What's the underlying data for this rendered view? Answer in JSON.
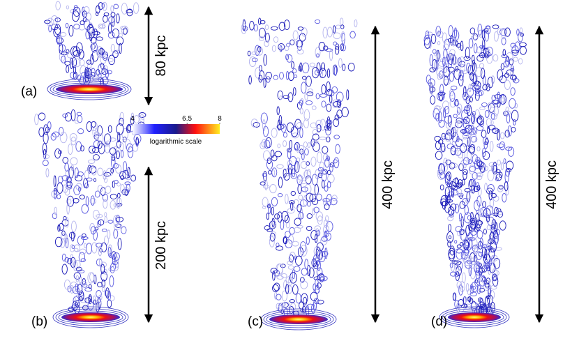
{
  "panels": [
    {
      "label": "(a)",
      "scale": "80 kpc"
    },
    {
      "label": "(b)",
      "scale": "200 kpc"
    },
    {
      "label": "(c)",
      "scale": "400 kpc"
    },
    {
      "label": "(d)",
      "scale": "400 kpc"
    }
  ],
  "colorbar": {
    "lim": [
      4,
      8
    ],
    "ticks": [
      4,
      6.5,
      8
    ],
    "label": "logarithmic scale"
  }
}
